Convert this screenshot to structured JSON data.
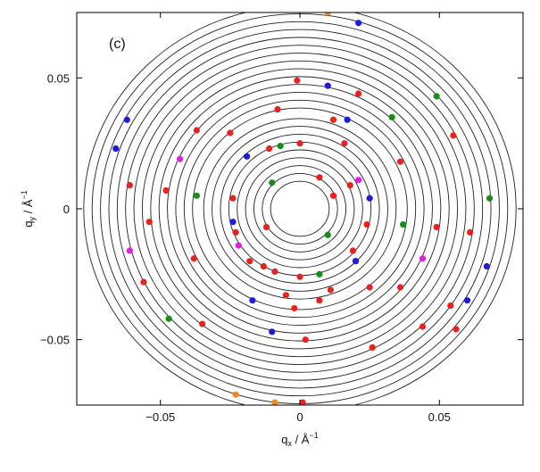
{
  "chart_data": {
    "type": "scatter",
    "panel_label": "(c)",
    "xlabel_main": "q",
    "xlabel_sub": "x",
    "xlabel_unit": " / Å",
    "xlabel_exp": "−1",
    "ylabel_main": "q",
    "ylabel_sub": "y",
    "ylabel_unit": " / Å",
    "ylabel_exp": "−1",
    "xlim": [
      -0.08,
      0.08
    ],
    "ylim": [
      -0.075,
      0.075
    ],
    "xticks": [
      -0.05,
      0,
      0.05
    ],
    "xtick_labels": [
      "−0.05",
      "0",
      "0.05"
    ],
    "yticks": [
      -0.05,
      0,
      0.05
    ],
    "ytick_labels": [
      "−0.05",
      "0",
      "0.05"
    ],
    "grid": false,
    "contour_radii": [
      0.0105,
      0.0135,
      0.0165,
      0.0195,
      0.0225,
      0.0255,
      0.0285,
      0.0315,
      0.0345,
      0.0385,
      0.0415,
      0.0445,
      0.0475,
      0.0505,
      0.0535,
      0.0565,
      0.0595,
      0.0625,
      0.0655,
      0.0685,
      0.0715,
      0.0745,
      0.0775
    ],
    "colors": {
      "contour": "#222222",
      "red": "#e8231f",
      "blue": "#1c1ce0",
      "green": "#1a8a1a",
      "magenta": "#e020e0",
      "orange": "#f08c1c"
    },
    "series": [
      {
        "color_key": "red",
        "points": [
          [
            -0.001,
            0.049
          ],
          [
            0.021,
            0.044
          ],
          [
            -0.008,
            0.038
          ],
          [
            0.012,
            0.034
          ],
          [
            -0.037,
            0.03
          ],
          [
            -0.025,
            0.029
          ],
          [
            0.055,
            0.028
          ],
          [
            -0.011,
            0.023
          ],
          [
            0.0,
            0.025
          ],
          [
            0.016,
            0.025
          ],
          [
            0.036,
            0.018
          ],
          [
            -0.048,
            0.007
          ],
          [
            0.018,
            0.009
          ],
          [
            -0.024,
            0.004
          ],
          [
            0.007,
            0.012
          ],
          [
            -0.054,
            -0.005
          ],
          [
            -0.012,
            -0.007
          ],
          [
            0.049,
            -0.007
          ],
          [
            -0.023,
            -0.009
          ],
          [
            0.019,
            -0.016
          ],
          [
            0.061,
            -0.009
          ],
          [
            -0.018,
            -0.02
          ],
          [
            -0.038,
            -0.019
          ],
          [
            0.02,
            -0.02
          ],
          [
            -0.013,
            -0.022
          ],
          [
            -0.009,
            -0.024
          ],
          [
            0.0,
            -0.026
          ],
          [
            -0.056,
            -0.028
          ],
          [
            0.025,
            -0.03
          ],
          [
            0.036,
            -0.03
          ],
          [
            0.011,
            -0.031
          ],
          [
            0.054,
            -0.037
          ],
          [
            -0.005,
            -0.033
          ],
          [
            0.007,
            -0.035
          ],
          [
            -0.002,
            -0.038
          ],
          [
            0.044,
            -0.045
          ],
          [
            0.056,
            -0.046
          ],
          [
            -0.035,
            -0.044
          ],
          [
            0.026,
            -0.053
          ],
          [
            0.002,
            -0.05
          ],
          [
            -0.061,
            0.009
          ],
          [
            0.012,
            0.005
          ],
          [
            0.024,
            -0.006
          ],
          [
            0.001,
            -0.074
          ]
        ]
      },
      {
        "color_key": "blue",
        "points": [
          [
            0.021,
            0.071
          ],
          [
            0.01,
            0.047
          ],
          [
            -0.062,
            0.034
          ],
          [
            0.017,
            0.034
          ],
          [
            -0.066,
            0.023
          ],
          [
            -0.019,
            0.02
          ],
          [
            0.025,
            0.004
          ],
          [
            -0.024,
            -0.005
          ],
          [
            0.02,
            -0.02
          ],
          [
            -0.017,
            -0.035
          ],
          [
            0.067,
            -0.022
          ],
          [
            0.06,
            -0.035
          ],
          [
            -0.01,
            -0.047
          ]
        ]
      },
      {
        "color_key": "green",
        "points": [
          [
            0.049,
            0.043
          ],
          [
            0.033,
            0.035
          ],
          [
            -0.007,
            0.024
          ],
          [
            -0.01,
            0.01
          ],
          [
            0.068,
            0.004
          ],
          [
            -0.037,
            0.005
          ],
          [
            0.037,
            -0.006
          ],
          [
            0.01,
            -0.01
          ],
          [
            0.007,
            -0.025
          ],
          [
            -0.047,
            -0.042
          ]
        ]
      },
      {
        "color_key": "magenta",
        "points": [
          [
            -0.043,
            0.019
          ],
          [
            0.021,
            0.011
          ],
          [
            -0.022,
            -0.014
          ],
          [
            0.044,
            -0.019
          ],
          [
            -0.061,
            -0.016
          ]
        ]
      },
      {
        "color_key": "orange",
        "points": [
          [
            0.01,
            0.075
          ],
          [
            -0.023,
            -0.071
          ],
          [
            -0.009,
            -0.074
          ]
        ]
      }
    ]
  }
}
